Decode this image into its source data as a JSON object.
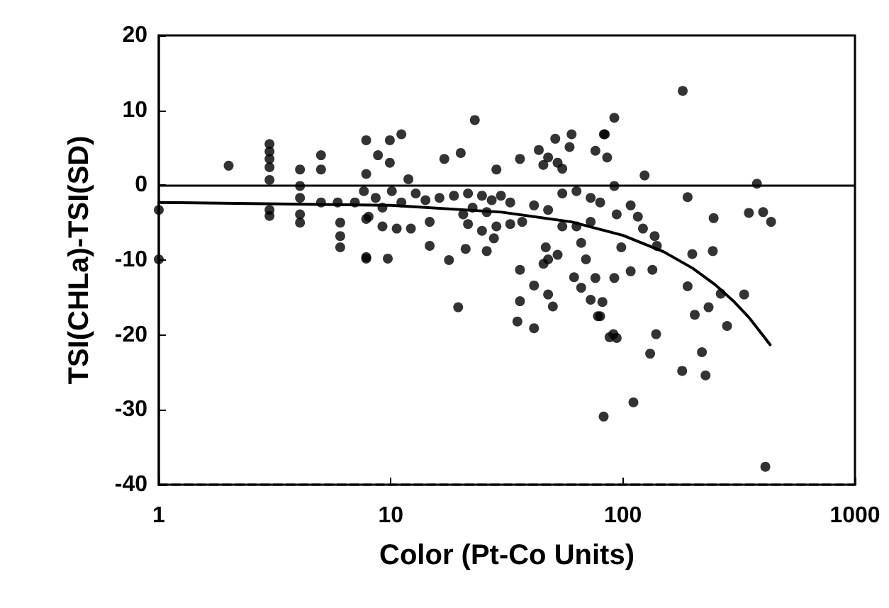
{
  "chart_data": {
    "type": "scatter",
    "xlabel": "Color (Pt-Co Units)",
    "ylabel": "TSI(CHLa)-TSI(SD)",
    "log": "x",
    "xlim": [
      1,
      1000
    ],
    "xticks": [
      1,
      10,
      100,
      1000
    ],
    "ylim": [
      -40,
      20
    ],
    "yticks": [
      -40,
      -30,
      -20,
      -10,
      0,
      10,
      20
    ],
    "grid": false,
    "marker": "circle",
    "ref_lines": [
      {
        "axis": "y",
        "value": 0,
        "color": "#000000",
        "line_style": "solid"
      }
    ],
    "series": [
      {
        "color": "#000000",
        "x": [
          1,
          1,
          2,
          3,
          3,
          3,
          3,
          3,
          3,
          3,
          4.06,
          4.06,
          4.06,
          4.06,
          4.06,
          5,
          5,
          6.05,
          6.05,
          6.05,
          5,
          5.9,
          7,
          7.83,
          7.83,
          7.83,
          7.83,
          23,
          9.9,
          11.1,
          8.8,
          9.9,
          17,
          20,
          11.9,
          28.5,
          36,
          43.4,
          47.6,
          45.4,
          52.3,
          51.1,
          60.1,
          58.9,
          54.8,
          76.1,
          82.8,
          7.65,
          8.6,
          10.1,
          9.2,
          11.1,
          12.8,
          14.1,
          16.2,
          18.7,
          21.5,
          24.7,
          27.2,
          29.8,
          32.7,
          22.5,
          25.9,
          20.5,
          8.02,
          9.2,
          10.6,
          12.2,
          14.7,
          21.5,
          24.7,
          28.5,
          32.7,
          36.8,
          41.4,
          47.6,
          54.8,
          63.1,
          72.6,
          79.8,
          54.8,
          63.1,
          72.6,
          7.83,
          9.7,
          14.7,
          17.8,
          21,
          25.9,
          27.8,
          36,
          41.4,
          47.6,
          36,
          49.9,
          19.5,
          35.1,
          41.4,
          46.5,
          47.6,
          52.3,
          66.1,
          69.3,
          61.6,
          66.1,
          72.6,
          79.8,
          76.1,
          87.6,
          45.5,
          181,
          91.8,
          83.6,
          85.5,
          124,
          190,
          246,
          349,
          402,
          435,
          108,
          116,
          94,
          137,
          122,
          140,
          199,
          244,
          98.4,
          134,
          108,
          91.8,
          190,
          264,
          333,
          234,
          204,
          281,
          78,
          81.6,
          94,
          91,
          139,
          219,
          131,
          180,
          227,
          111,
          82.6,
          411,
          378,
          91.8
        ],
        "values": [
          -3.3,
          -9.9,
          2.6,
          5.5,
          4.5,
          3.5,
          2.4,
          0.7,
          -3.3,
          -4.1,
          2.1,
          -0.1,
          -1.7,
          -3.9,
          -5,
          4,
          2.1,
          -5,
          -6.8,
          -8.3,
          -2.3,
          -2.3,
          -2.3,
          6,
          1.5,
          -4.5,
          -9.8,
          8.7,
          6,
          6.8,
          4,
          3,
          3.5,
          4.3,
          0.8,
          2.1,
          3.5,
          4.7,
          3.7,
          2.7,
          3,
          6.2,
          6.8,
          5.1,
          2.2,
          4.6,
          6.8,
          -0.8,
          -1.7,
          -0.8,
          -3,
          -2.3,
          -1.1,
          -2,
          -1.7,
          -1.4,
          -1.1,
          -1.4,
          -2,
          -1.4,
          -2.3,
          -3,
          -3.6,
          -3.9,
          -4.2,
          -5.5,
          -5.8,
          -5.8,
          -4.9,
          -5.2,
          -6.1,
          -5.5,
          -5.2,
          -4.9,
          -2.7,
          -3.3,
          -1.1,
          -0.8,
          -1.7,
          -2.3,
          -5.5,
          -5.5,
          -4.9,
          -9.6,
          -9.8,
          -8.1,
          -10,
          -8.5,
          -8.8,
          -7.1,
          -11.3,
          -13.4,
          -14.6,
          -15.5,
          -16.2,
          -16.3,
          -18.2,
          -19.1,
          -8.3,
          -9.9,
          -9.3,
          -7.7,
          -9.9,
          -12.3,
          -13.7,
          -15.3,
          -17.5,
          -12.4,
          -20.3,
          -10.5,
          12.6,
          9,
          6.8,
          3.7,
          1.3,
          -1.6,
          -4.4,
          -3.7,
          -3.6,
          -4.9,
          -2.7,
          -4.2,
          -3.9,
          -6.8,
          -5.8,
          -8.1,
          -9.2,
          -8.8,
          -8.3,
          -11.3,
          -11.5,
          -12.4,
          -13.5,
          -14.5,
          -14.6,
          -16.3,
          -17.3,
          -18.8,
          -17.5,
          -15.6,
          -20.4,
          -19.9,
          -19.9,
          -22.3,
          -22.5,
          -24.8,
          -25.4,
          -29,
          -30.9,
          -37.6,
          0.2,
          -0.1
        ]
      },
      {
        "type": "line",
        "color": "#000000",
        "marker": "none",
        "line_style": "solid",
        "x": [
          1,
          10,
          30,
          60,
          100,
          150,
          200,
          250,
          300,
          350,
          400,
          431
        ],
        "values": [
          -2.3,
          -2.7,
          -3.6,
          -4.9,
          -6.7,
          -8.9,
          -11.1,
          -13.3,
          -15.5,
          -17.7,
          -20,
          -21.3
        ]
      }
    ]
  }
}
